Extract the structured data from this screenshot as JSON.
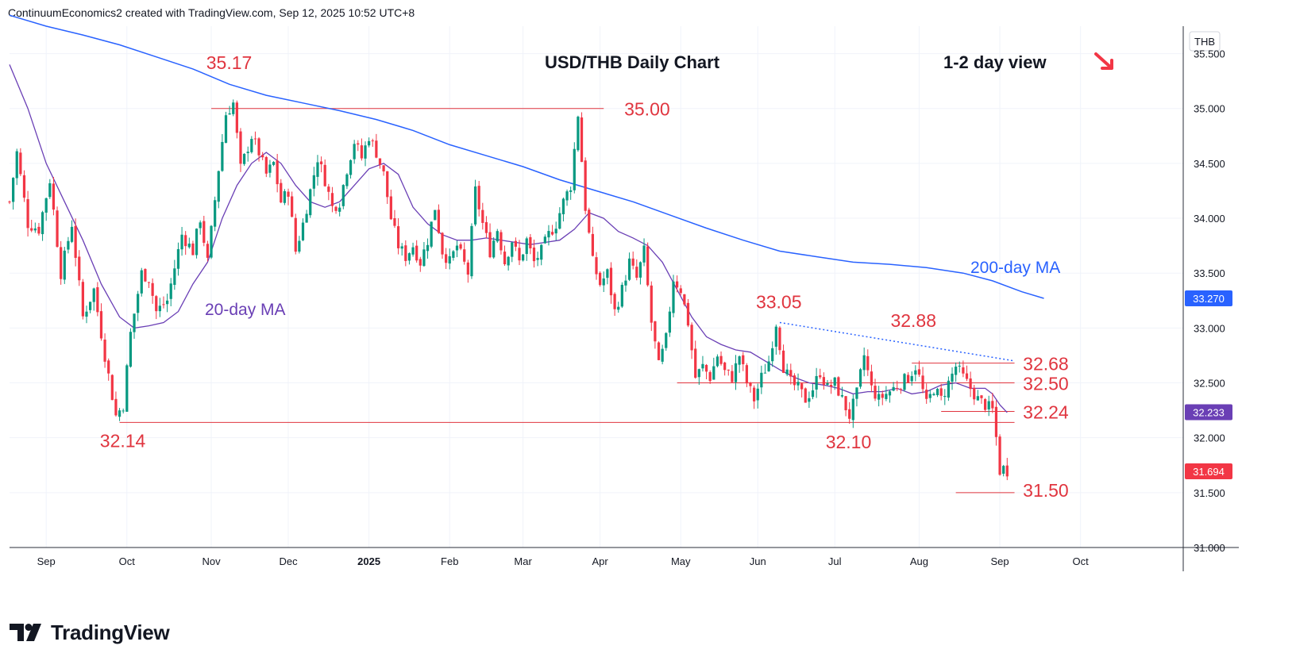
{
  "header": {
    "text": "ContinuumEconomics2 created with TradingView.com, Sep 12, 2025 10:52 UTC+8"
  },
  "brand": {
    "name": "TradingView"
  },
  "colors": {
    "up": "#089981",
    "down": "#f23645",
    "ma200": "#2962ff",
    "ma20": "#6a3fb5",
    "level": "#e0353f"
  },
  "chart_data": {
    "type": "candlestick",
    "title": "USD/THB Daily Chart",
    "view_text": "1-2 day view",
    "view_icon": "arrow-down-right-icon",
    "currency_label": "THB",
    "yaxis_ticks": [
      "35.500",
      "35.000",
      "34.500",
      "34.000",
      "33.500",
      "33.000",
      "32.500",
      "32.000",
      "31.500",
      "31.000"
    ],
    "ylim": [
      31.0,
      35.75
    ],
    "xaxis_ticks": [
      {
        "label": "Sep",
        "x": 0
      },
      {
        "label": "Oct",
        "x": 22
      },
      {
        "label": "Nov",
        "x": 45
      },
      {
        "label": "Dec",
        "x": 66
      },
      {
        "label": "2025",
        "x": 88
      },
      {
        "label": "Feb",
        "x": 110
      },
      {
        "label": "Mar",
        "x": 130
      },
      {
        "label": "Apr",
        "x": 151
      },
      {
        "label": "May",
        "x": 173
      },
      {
        "label": "Jun",
        "x": 194
      },
      {
        "label": "Jul",
        "x": 215
      },
      {
        "label": "Aug",
        "x": 238
      },
      {
        "label": "Sep",
        "x": 260
      },
      {
        "label": "Oct",
        "x": 282
      }
    ],
    "xlim": [
      -10,
      310
    ],
    "anchors": [
      [
        -10,
        34.15
      ],
      [
        -8,
        34.6
      ],
      [
        -5,
        33.95
      ],
      [
        -2,
        33.9
      ],
      [
        1,
        34.35
      ],
      [
        4,
        33.5
      ],
      [
        7,
        33.95
      ],
      [
        10,
        33.1
      ],
      [
        13,
        33.35
      ],
      [
        16,
        32.75
      ],
      [
        19,
        32.2
      ],
      [
        21,
        32.3
      ],
      [
        23,
        32.95
      ],
      [
        26,
        33.5
      ],
      [
        28,
        33.45
      ],
      [
        30,
        33.15
      ],
      [
        33,
        33.25
      ],
      [
        35,
        33.55
      ],
      [
        37,
        33.85
      ],
      [
        40,
        33.7
      ],
      [
        42,
        34.0
      ],
      [
        44,
        33.6
      ],
      [
        47,
        34.45
      ],
      [
        49,
        34.95
      ],
      [
        51,
        35.05
      ],
      [
        53,
        34.45
      ],
      [
        56,
        34.75
      ],
      [
        58,
        34.6
      ],
      [
        60,
        34.4
      ],
      [
        62,
        34.5
      ],
      [
        64,
        34.15
      ],
      [
        66,
        34.25
      ],
      [
        68,
        33.7
      ],
      [
        70,
        33.95
      ],
      [
        72,
        34.25
      ],
      [
        74,
        34.55
      ],
      [
        76,
        34.35
      ],
      [
        78,
        34.1
      ],
      [
        80,
        34.15
      ],
      [
        82,
        34.45
      ],
      [
        84,
        34.7
      ],
      [
        86,
        34.55
      ],
      [
        88,
        34.75
      ],
      [
        90,
        34.6
      ],
      [
        92,
        34.4
      ],
      [
        94,
        34.0
      ],
      [
        96,
        33.75
      ],
      [
        98,
        33.65
      ],
      [
        100,
        33.75
      ],
      [
        102,
        33.6
      ],
      [
        104,
        33.8
      ],
      [
        106,
        34.1
      ],
      [
        108,
        33.7
      ],
      [
        110,
        33.6
      ],
      [
        112,
        33.75
      ],
      [
        115,
        33.5
      ],
      [
        117,
        34.25
      ],
      [
        119,
        33.95
      ],
      [
        121,
        33.7
      ],
      [
        123,
        33.9
      ],
      [
        125,
        33.6
      ],
      [
        127,
        33.8
      ],
      [
        129,
        33.6
      ],
      [
        131,
        33.8
      ],
      [
        133,
        33.6
      ],
      [
        135,
        33.7
      ],
      [
        137,
        33.85
      ],
      [
        139,
        33.95
      ],
      [
        141,
        34.15
      ],
      [
        143,
        34.3
      ],
      [
        145,
        34.95
      ],
      [
        147,
        34.1
      ],
      [
        149,
        33.6
      ],
      [
        151,
        33.4
      ],
      [
        153,
        33.5
      ],
      [
        155,
        33.15
      ],
      [
        157,
        33.35
      ],
      [
        159,
        33.6
      ],
      [
        161,
        33.45
      ],
      [
        163,
        33.7
      ],
      [
        165,
        33.05
      ],
      [
        167,
        32.65
      ],
      [
        169,
        32.9
      ],
      [
        171,
        33.45
      ],
      [
        173,
        33.35
      ],
      [
        175,
        33.05
      ],
      [
        177,
        32.55
      ],
      [
        179,
        32.65
      ],
      [
        181,
        32.55
      ],
      [
        183,
        32.75
      ],
      [
        185,
        32.6
      ],
      [
        187,
        32.55
      ],
      [
        189,
        32.75
      ],
      [
        191,
        32.5
      ],
      [
        193,
        32.35
      ],
      [
        195,
        32.55
      ],
      [
        197,
        32.7
      ],
      [
        199,
        33.05
      ],
      [
        201,
        32.65
      ],
      [
        203,
        32.5
      ],
      [
        205,
        32.45
      ],
      [
        207,
        32.35
      ],
      [
        209,
        32.45
      ],
      [
        211,
        32.6
      ],
      [
        213,
        32.45
      ],
      [
        215,
        32.5
      ],
      [
        217,
        32.35
      ],
      [
        219,
        32.2
      ],
      [
        221,
        32.4
      ],
      [
        223,
        32.75
      ],
      [
        225,
        32.45
      ],
      [
        227,
        32.35
      ],
      [
        229,
        32.4
      ],
      [
        231,
        32.45
      ],
      [
        233,
        32.5
      ],
      [
        235,
        32.55
      ],
      [
        237,
        32.65
      ],
      [
        238,
        32.55
      ],
      [
        240,
        32.3
      ],
      [
        242,
        32.45
      ],
      [
        244,
        32.35
      ],
      [
        246,
        32.5
      ],
      [
        248,
        32.65
      ],
      [
        250,
        32.55
      ],
      [
        252,
        32.45
      ],
      [
        254,
        32.35
      ],
      [
        256,
        32.3
      ],
      [
        258,
        32.25
      ],
      [
        259,
        32.0
      ],
      [
        260,
        31.7
      ],
      [
        261,
        31.72
      ],
      [
        262,
        31.7
      ]
    ],
    "ma200": [
      [
        -10,
        35.85
      ],
      [
        0,
        35.75
      ],
      [
        10,
        35.67
      ],
      [
        20,
        35.58
      ],
      [
        30,
        35.47
      ],
      [
        40,
        35.36
      ],
      [
        50,
        35.22
      ],
      [
        60,
        35.12
      ],
      [
        70,
        35.05
      ],
      [
        80,
        34.98
      ],
      [
        90,
        34.9
      ],
      [
        100,
        34.8
      ],
      [
        110,
        34.67
      ],
      [
        120,
        34.57
      ],
      [
        130,
        34.47
      ],
      [
        140,
        34.35
      ],
      [
        150,
        34.25
      ],
      [
        160,
        34.15
      ],
      [
        170,
        34.03
      ],
      [
        180,
        33.91
      ],
      [
        190,
        33.8
      ],
      [
        200,
        33.7
      ],
      [
        210,
        33.65
      ],
      [
        220,
        33.6
      ],
      [
        230,
        33.58
      ],
      [
        240,
        33.55
      ],
      [
        250,
        33.5
      ],
      [
        258,
        33.43
      ],
      [
        266,
        33.33
      ],
      [
        272,
        33.27
      ]
    ],
    "ma20": [
      [
        -10,
        35.4
      ],
      [
        -5,
        35.0
      ],
      [
        0,
        34.5
      ],
      [
        5,
        34.15
      ],
      [
        10,
        33.8
      ],
      [
        15,
        33.4
      ],
      [
        20,
        33.1
      ],
      [
        24,
        33.0
      ],
      [
        28,
        33.02
      ],
      [
        32,
        33.05
      ],
      [
        36,
        33.15
      ],
      [
        40,
        33.4
      ],
      [
        44,
        33.6
      ],
      [
        48,
        34.0
      ],
      [
        52,
        34.3
      ],
      [
        56,
        34.5
      ],
      [
        60,
        34.6
      ],
      [
        64,
        34.5
      ],
      [
        68,
        34.3
      ],
      [
        72,
        34.15
      ],
      [
        76,
        34.1
      ],
      [
        80,
        34.15
      ],
      [
        84,
        34.3
      ],
      [
        88,
        34.45
      ],
      [
        92,
        34.5
      ],
      [
        96,
        34.4
      ],
      [
        100,
        34.1
      ],
      [
        104,
        33.95
      ],
      [
        108,
        33.85
      ],
      [
        112,
        33.8
      ],
      [
        116,
        33.8
      ],
      [
        120,
        33.82
      ],
      [
        124,
        33.8
      ],
      [
        128,
        33.78
      ],
      [
        132,
        33.76
      ],
      [
        136,
        33.78
      ],
      [
        140,
        33.8
      ],
      [
        144,
        33.9
      ],
      [
        148,
        34.05
      ],
      [
        152,
        34.0
      ],
      [
        156,
        33.88
      ],
      [
        160,
        33.82
      ],
      [
        164,
        33.75
      ],
      [
        168,
        33.6
      ],
      [
        172,
        33.35
      ],
      [
        176,
        33.1
      ],
      [
        180,
        32.92
      ],
      [
        184,
        32.85
      ],
      [
        188,
        32.8
      ],
      [
        192,
        32.78
      ],
      [
        196,
        32.7
      ],
      [
        200,
        32.62
      ],
      [
        204,
        32.55
      ],
      [
        208,
        32.5
      ],
      [
        212,
        32.48
      ],
      [
        216,
        32.45
      ],
      [
        220,
        32.4
      ],
      [
        224,
        32.42
      ],
      [
        228,
        32.42
      ],
      [
        232,
        32.45
      ],
      [
        236,
        32.4
      ],
      [
        240,
        32.42
      ],
      [
        244,
        32.48
      ],
      [
        248,
        32.5
      ],
      [
        252,
        32.45
      ],
      [
        256,
        32.45
      ],
      [
        258,
        32.4
      ],
      [
        260,
        32.3
      ],
      [
        262,
        32.23
      ]
    ],
    "levels": [
      {
        "label": "35.00",
        "value": 35.0,
        "x1": 45,
        "x2": 152
      },
      {
        "label": "32.68",
        "value": 32.68,
        "x1": 236,
        "x2": 264
      },
      {
        "label": "32.50",
        "value": 32.5,
        "x1": 172,
        "x2": 264
      },
      {
        "label": "32.24",
        "value": 32.24,
        "x1": 244,
        "x2": 264
      },
      {
        "label": "32.14",
        "value": 32.14,
        "x1": 20,
        "x2": 264
      },
      {
        "label": "31.50",
        "value": 31.5,
        "x1": 248,
        "x2": 264
      }
    ],
    "trendline": {
      "x1": 200,
      "y1": 33.05,
      "x2": 264,
      "y2": 32.7
    },
    "annotations": [
      {
        "text": "35.17",
        "x": 51,
        "y": 35.17
      },
      {
        "text": "35.00",
        "x": 155,
        "y": 35.0
      },
      {
        "text": "33.05",
        "x": 200,
        "y": 33.05
      },
      {
        "text": "32.88",
        "x": 238,
        "y": 32.88
      },
      {
        "text": "32.68",
        "x": 265,
        "y": 32.68
      },
      {
        "text": "32.50",
        "x": 265,
        "y": 32.5
      },
      {
        "text": "32.24",
        "x": 265,
        "y": 32.24
      },
      {
        "text": "32.14",
        "x": 22,
        "y": 32.14
      },
      {
        "text": "32.10",
        "x": 219,
        "y": 32.1
      },
      {
        "text": "31.50",
        "x": 265,
        "y": 31.5
      }
    ],
    "ma_labels": [
      {
        "text": "200-day MA",
        "series": "ma200"
      },
      {
        "text": "20-day MA",
        "series": "ma20"
      }
    ],
    "price_badges": [
      {
        "label": "33.270",
        "value": 33.27,
        "color": "#2962ff"
      },
      {
        "label": "32.233",
        "value": 32.233,
        "color": "#6a3fb5"
      },
      {
        "label": "31.694",
        "value": 31.694,
        "color": "#f23645"
      }
    ]
  }
}
